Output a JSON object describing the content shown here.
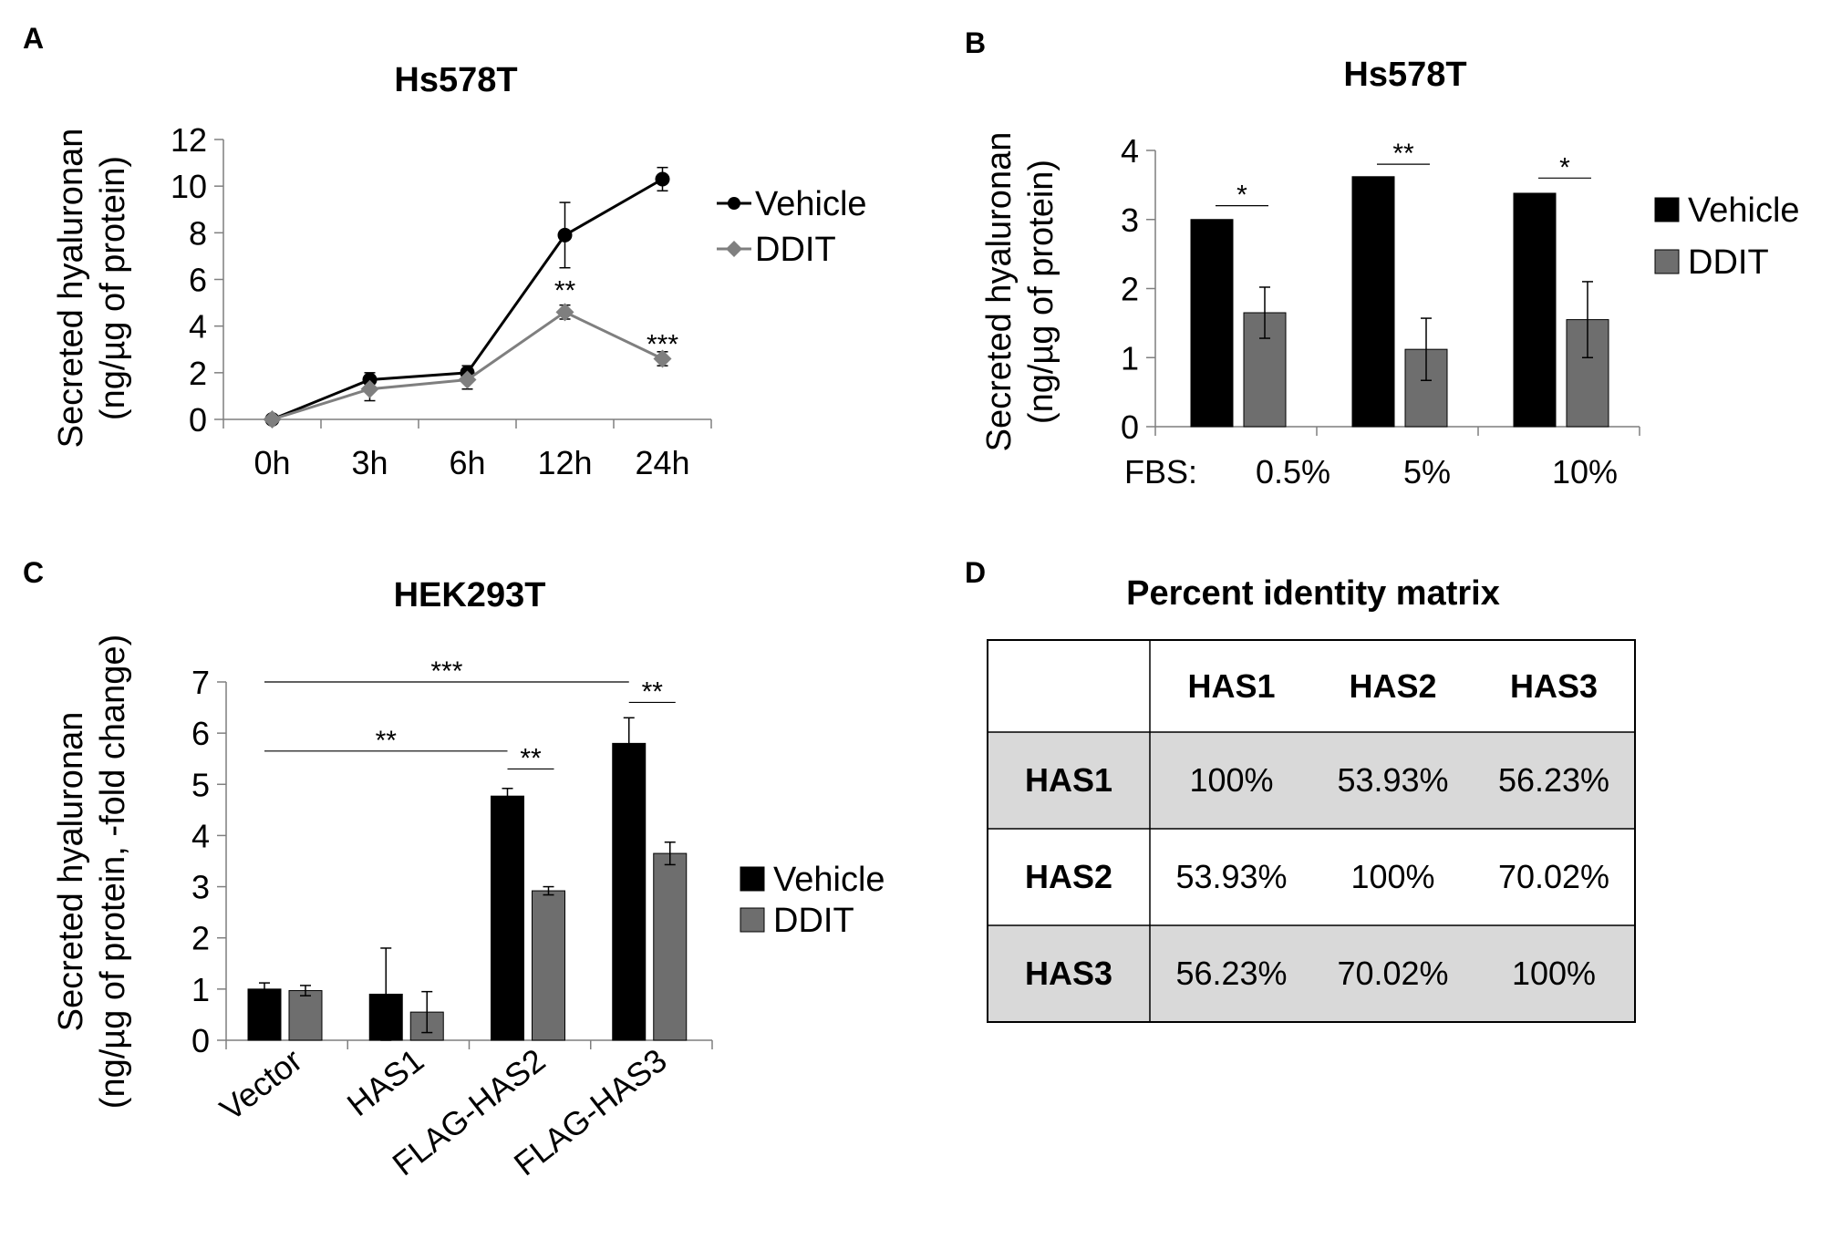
{
  "chart_data": [
    {
      "panel": "A",
      "type": "line",
      "title": "Hs578T",
      "ylabel_line1": "Secreted hyaluronan",
      "ylabel_line2": "(ng/µg of protein)",
      "xlabel": "",
      "categories": [
        "0h",
        "3h",
        "6h",
        "12h",
        "24h"
      ],
      "ylim": [
        0,
        12
      ],
      "yticks": [
        0,
        2,
        4,
        6,
        8,
        10,
        12
      ],
      "legend_position": "right",
      "series": [
        {
          "name": "Vehicle",
          "marker": "circle",
          "color": "#000000",
          "values": [
            0,
            1.7,
            2.0,
            7.9,
            10.3
          ],
          "errors": [
            0,
            0.3,
            0.3,
            1.4,
            0.5
          ]
        },
        {
          "name": "DDIT",
          "marker": "diamond",
          "color": "#7f7f7f",
          "values": [
            0,
            1.3,
            1.7,
            4.6,
            2.6
          ],
          "errors": [
            0,
            0.5,
            0.4,
            0.3,
            0.3
          ]
        }
      ],
      "annotations": [
        {
          "category": "12h",
          "label": "**",
          "y": 5.6
        },
        {
          "category": "24h",
          "label": "***",
          "y": 3.3
        }
      ]
    },
    {
      "panel": "B",
      "type": "bar",
      "title": "Hs578T",
      "ylabel_line1": "Secreted hyaluronan",
      "ylabel_line2": "(ng/µg of protein)",
      "x_prefix": "FBS:",
      "categories": [
        "0.5%",
        "5%",
        "10%"
      ],
      "ylim": [
        0,
        4
      ],
      "yticks": [
        0,
        1,
        2,
        3,
        4
      ],
      "legend_position": "right",
      "series": [
        {
          "name": "Vehicle",
          "color": "#000000",
          "values": [
            3.0,
            3.62,
            3.38
          ],
          "errors": [
            0,
            0,
            0
          ]
        },
        {
          "name": "DDIT",
          "color": "#6e6e6e",
          "values": [
            1.65,
            1.12,
            1.55
          ],
          "errors": [
            0.37,
            0.45,
            0.55
          ]
        }
      ],
      "annotations": [
        {
          "category": "0.5%",
          "label": "*",
          "y": 3.2
        },
        {
          "category": "5%",
          "label": "**",
          "y": 3.8
        },
        {
          "category": "10%",
          "label": "*",
          "y": 3.6
        }
      ]
    },
    {
      "panel": "C",
      "type": "bar",
      "title": "HEK293T",
      "ylabel_line1": "Secreted hyaluronan",
      "ylabel_line2": "(ng/µg of protein, -fold change)",
      "categories": [
        "Vector",
        "HAS1",
        "FLAG-HAS2",
        "FLAG-HAS3"
      ],
      "ylim": [
        0,
        7
      ],
      "yticks": [
        0,
        1,
        2,
        3,
        4,
        5,
        6,
        7
      ],
      "legend_position": "right",
      "series": [
        {
          "name": "Vehicle",
          "color": "#000000",
          "values": [
            1.0,
            0.9,
            4.77,
            5.8
          ],
          "errors": [
            0.12,
            0.9,
            0.15,
            0.5
          ]
        },
        {
          "name": "DDIT",
          "color": "#6e6e6e",
          "values": [
            0.97,
            0.55,
            2.92,
            3.65
          ],
          "errors": [
            0.1,
            0.4,
            0.08,
            0.22
          ]
        }
      ],
      "annotations": [
        {
          "from": "Vector",
          "to": "FLAG-HAS3",
          "label": "***",
          "y": 7.0
        },
        {
          "from": "Vector",
          "to": "FLAG-HAS2",
          "label": "**",
          "y": 5.65
        },
        {
          "within": "FLAG-HAS2",
          "label": "**",
          "y": 5.3
        },
        {
          "within": "FLAG-HAS3",
          "label": "**",
          "y": 6.6
        }
      ]
    },
    {
      "panel": "D",
      "type": "table",
      "title": "Percent identity matrix",
      "columns": [
        "HAS1",
        "HAS2",
        "HAS3"
      ],
      "rows": [
        {
          "label": "HAS1",
          "cells": [
            "100%",
            "53.93%",
            "56.23%"
          ]
        },
        {
          "label": "HAS2",
          "cells": [
            "53.93%",
            "100%",
            "70.02%"
          ]
        },
        {
          "label": "HAS3",
          "cells": [
            "56.23%",
            "70.02%",
            "100%"
          ]
        }
      ]
    }
  ],
  "colors": {
    "vehicle": "#000000",
    "ddit_line": "#7f7f7f",
    "ddit_bar": "#6e6e6e",
    "shaded_row": "#d9d9d9"
  }
}
